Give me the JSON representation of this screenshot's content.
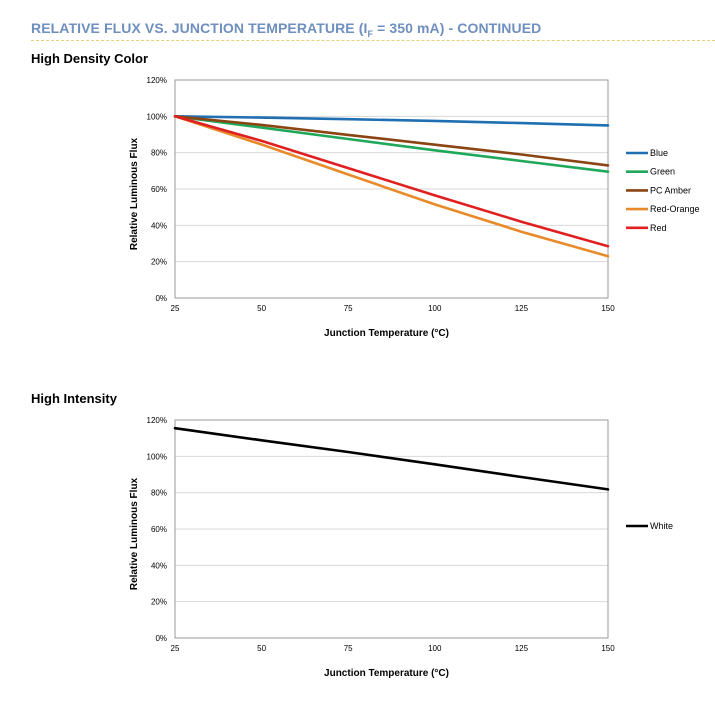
{
  "header": {
    "title_main": "RELATIVE FLUX VS. JUNCTION TEMPERATURE (I",
    "title_sub": "F",
    "title_rest": " = 350 mA) - CONTINUED"
  },
  "chart_data": [
    {
      "type": "line",
      "title": "High Density Color",
      "xlabel": "Junction Temperature (°C)",
      "ylabel": "Relative Luminous Flux",
      "xlim": [
        25,
        150
      ],
      "ylim": [
        0,
        120
      ],
      "xticks": [
        25,
        50,
        75,
        100,
        125,
        150
      ],
      "yticks": [
        0,
        20,
        40,
        60,
        80,
        100,
        120
      ],
      "ytick_labels": [
        "0%",
        "20%",
        "40%",
        "60%",
        "80%",
        "100%",
        "120%"
      ],
      "grid": true,
      "legend_position": "right",
      "x": [
        25,
        50,
        75,
        100,
        125,
        150
      ],
      "series": [
        {
          "name": "Blue",
          "color": "#1f6fb2",
          "values": [
            100,
            99.3,
            98.4,
            97.5,
            96.3,
            95
          ]
        },
        {
          "name": "Green",
          "color": "#1fa85a",
          "values": [
            100,
            93.8,
            87.5,
            81.3,
            75.4,
            69.5
          ]
        },
        {
          "name": "PC Amber",
          "color": "#8b4513",
          "values": [
            100,
            95.3,
            89.8,
            84.4,
            79,
            73
          ]
        },
        {
          "name": "Red-Orange",
          "color": "#e88a2a",
          "values": [
            100,
            84.5,
            68,
            51.5,
            36.5,
            23
          ]
        },
        {
          "name": "Red",
          "color": "#e02020",
          "values": [
            100,
            86.5,
            71.5,
            56.5,
            42,
            28.5
          ]
        }
      ]
    },
    {
      "type": "line",
      "title": "High Intensity",
      "xlabel": "Junction Temperature (°C)",
      "ylabel": "Relative Luminous Flux",
      "xlim": [
        25,
        150
      ],
      "ylim": [
        0,
        120
      ],
      "xticks": [
        25,
        50,
        75,
        100,
        125,
        150
      ],
      "yticks": [
        0,
        20,
        40,
        60,
        80,
        100,
        120
      ],
      "ytick_labels": [
        "0%",
        "20%",
        "40%",
        "60%",
        "80%",
        "100%",
        "120%"
      ],
      "grid": true,
      "legend_position": "right",
      "x": [
        25,
        50,
        75,
        100,
        125,
        150
      ],
      "series": [
        {
          "name": "White",
          "color": "#000000",
          "values": [
            115.5,
            108.8,
            102.4,
            95.6,
            88.6,
            81.8
          ]
        }
      ]
    }
  ]
}
